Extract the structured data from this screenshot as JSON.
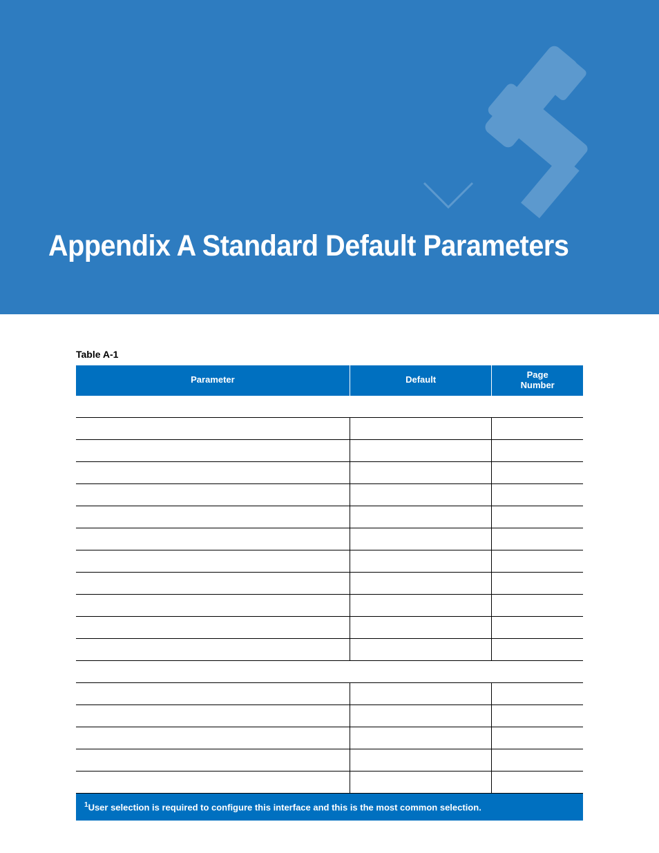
{
  "banner": {
    "title": "Appendix A  Standard Default Parameters",
    "bg_color": "#2e7cc0",
    "title_color": "#ffffff",
    "title_fontsize": 43
  },
  "table": {
    "label": "Table A-1",
    "header_bg": "#0070c0",
    "header_color": "#ffffff",
    "columns": [
      {
        "label": "Parameter",
        "width_pct": 54
      },
      {
        "label": "Default",
        "width_pct": 28
      },
      {
        "label": "Page Number",
        "width_pct": 18
      }
    ],
    "rows": [
      {
        "type": "section",
        "cells": [
          ""
        ]
      },
      {
        "type": "data",
        "cells": [
          "",
          "",
          ""
        ]
      },
      {
        "type": "data",
        "cells": [
          "",
          "",
          ""
        ]
      },
      {
        "type": "data",
        "cells": [
          "",
          "",
          ""
        ]
      },
      {
        "type": "data",
        "cells": [
          "",
          "",
          ""
        ]
      },
      {
        "type": "data",
        "cells": [
          "",
          "",
          ""
        ]
      },
      {
        "type": "data",
        "cells": [
          "",
          "",
          ""
        ]
      },
      {
        "type": "data",
        "cells": [
          "",
          "",
          ""
        ]
      },
      {
        "type": "data",
        "cells": [
          "",
          "",
          ""
        ]
      },
      {
        "type": "data",
        "cells": [
          "",
          "",
          ""
        ]
      },
      {
        "type": "data",
        "cells": [
          "",
          "",
          ""
        ]
      },
      {
        "type": "data",
        "cells": [
          "",
          "",
          ""
        ]
      },
      {
        "type": "section",
        "cells": [
          ""
        ]
      },
      {
        "type": "data",
        "cells": [
          "",
          "",
          ""
        ]
      },
      {
        "type": "data",
        "cells": [
          "",
          "",
          ""
        ]
      },
      {
        "type": "data",
        "cells": [
          "",
          "",
          ""
        ]
      },
      {
        "type": "data",
        "cells": [
          "",
          "",
          ""
        ]
      },
      {
        "type": "data",
        "cells": [
          "",
          "",
          ""
        ]
      }
    ],
    "footnote": {
      "marker": "1",
      "text": "User selection is required to configure this interface and this is the most common selection."
    }
  }
}
